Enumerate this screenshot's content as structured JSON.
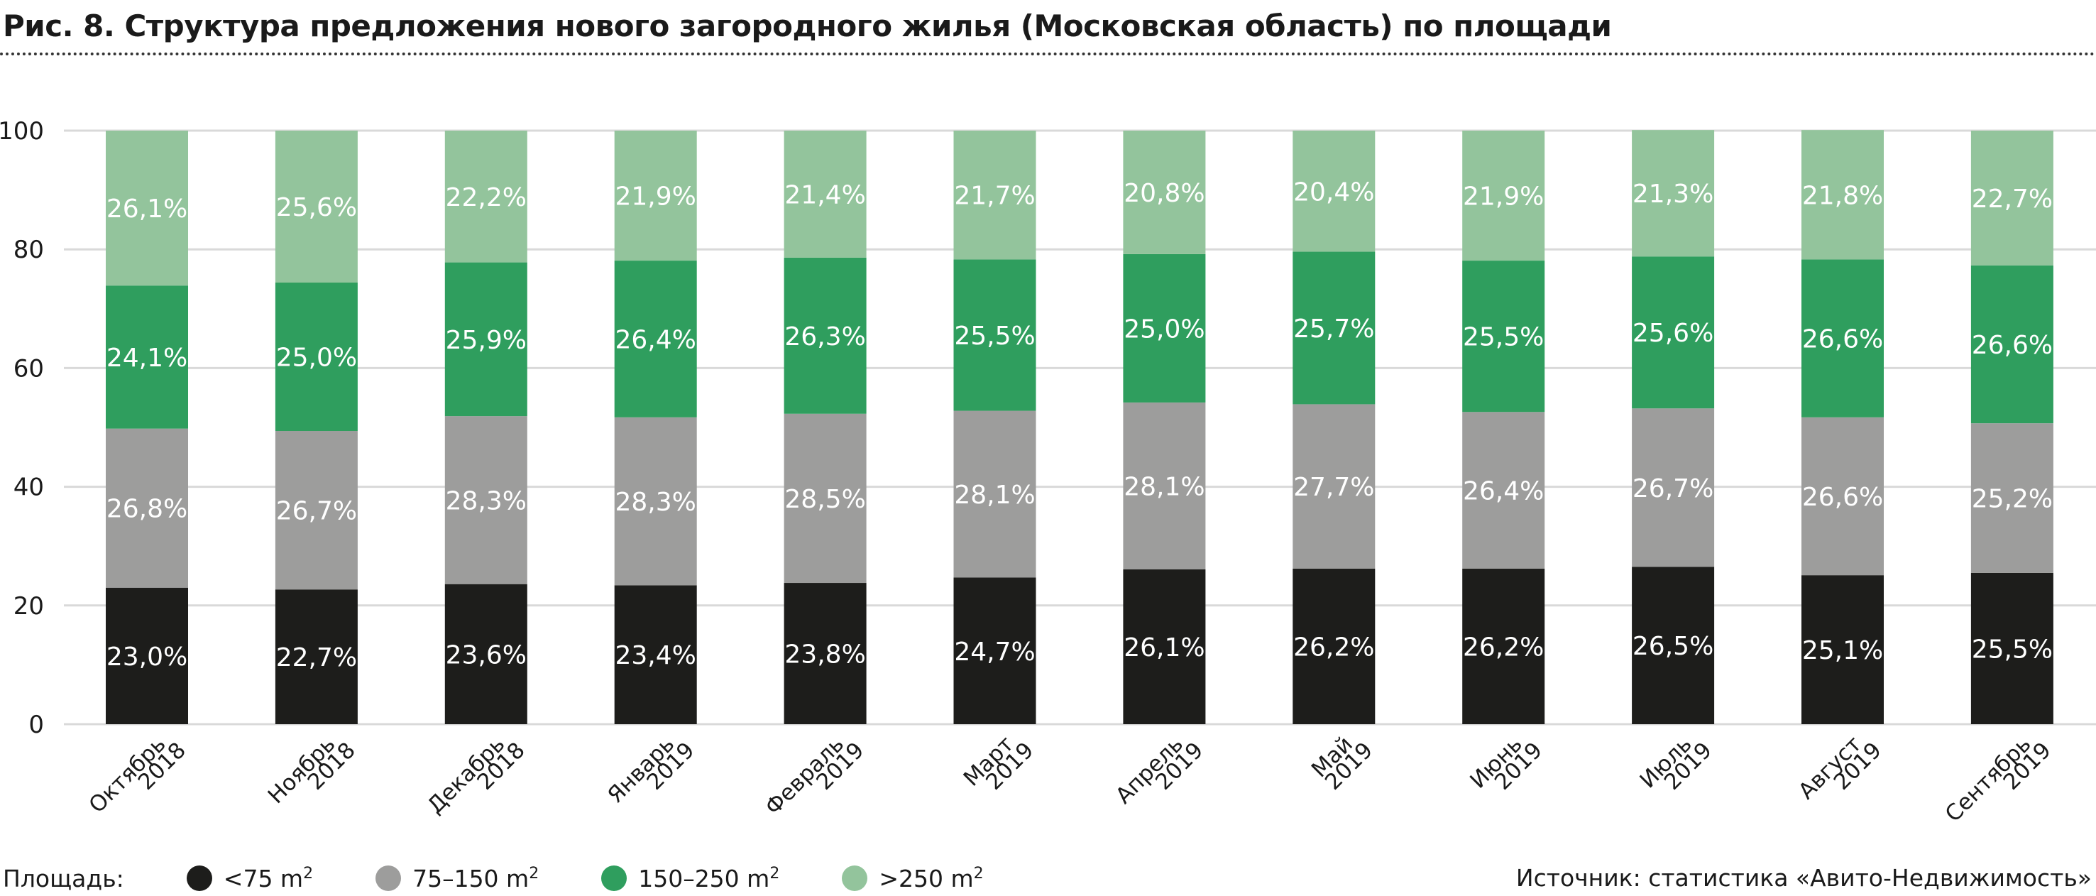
{
  "title": "Рис. 8. Структура предложения нового загородного жилья (Московская область) по площади",
  "legend": {
    "title": "Площадь:",
    "items": [
      {
        "label": "<75 m",
        "sup": "2",
        "color": "#1d1d1b"
      },
      {
        "label": "75–150 m",
        "sup": "2",
        "color": "#9d9d9c"
      },
      {
        "label": "150–250 m",
        "sup": "2",
        "color": "#2f9e5e"
      },
      {
        "label": ">250 m",
        "sup": "2",
        "color": "#93c49c"
      }
    ]
  },
  "source": "Источник: статистика «Авито-Недвижимость»",
  "chart_data": {
    "type": "bar",
    "stacked": true,
    "title": "Рис. 8. Структура предложения нового загородного жилья (Московская область) по площади",
    "categories": [
      [
        "Октябрь",
        "2018"
      ],
      [
        "Ноябрь",
        "2018"
      ],
      [
        "Декабрь",
        "2018"
      ],
      [
        "Январь",
        "2019"
      ],
      [
        "Февраль",
        "2019"
      ],
      [
        "Март",
        "2019"
      ],
      [
        "Апрель",
        "2019"
      ],
      [
        "Май",
        "2019"
      ],
      [
        "Июнь",
        "2019"
      ],
      [
        "Июль",
        "2019"
      ],
      [
        "Август",
        "2019"
      ],
      [
        "Сентябрь",
        "2019"
      ]
    ],
    "series": [
      {
        "name": "<75 m2",
        "color": "#1d1d1b",
        "values": [
          23.0,
          22.7,
          23.6,
          23.4,
          23.8,
          24.7,
          26.1,
          26.2,
          26.2,
          26.5,
          25.1,
          25.5
        ],
        "labels": [
          "23,0%",
          "22,7%",
          "23,6%",
          "23,4%",
          "23,8%",
          "24,7%",
          "26,1%",
          "26,2%",
          "26,2%",
          "26,5%",
          "25,1%",
          "25,5%"
        ]
      },
      {
        "name": "75–150 m2",
        "color": "#9d9d9c",
        "values": [
          26.8,
          26.7,
          28.3,
          28.3,
          28.5,
          28.1,
          28.1,
          27.7,
          26.4,
          26.7,
          26.6,
          25.2
        ],
        "labels": [
          "26,8%",
          "26,7%",
          "28,3%",
          "28,3%",
          "28,5%",
          "28,1%",
          "28,1%",
          "27,7%",
          "26,4%",
          "26,7%",
          "26,6%",
          "25,2%"
        ]
      },
      {
        "name": "150–250 m2",
        "color": "#2f9e5e",
        "values": [
          24.1,
          25.0,
          25.9,
          26.4,
          26.3,
          25.5,
          25.0,
          25.7,
          25.5,
          25.6,
          26.6,
          26.6
        ],
        "labels": [
          "24,1%",
          "25,0%",
          "25,9%",
          "26,4%",
          "26,3%",
          "25,5%",
          "25,0%",
          "25,7%",
          "25,5%",
          "25,6%",
          "26,6%",
          "26,6%"
        ]
      },
      {
        "name": ">250 m2",
        "color": "#93c49c",
        "values": [
          26.1,
          25.6,
          22.2,
          21.9,
          21.4,
          21.7,
          20.8,
          20.4,
          21.9,
          21.3,
          21.8,
          22.7
        ],
        "labels": [
          "26,1%",
          "25,6%",
          "22,2%",
          "21,9%",
          "21,4%",
          "21,7%",
          "20,8%",
          "20,4%",
          "21,9%",
          "21,3%",
          "21,8%",
          "22,7%"
        ]
      }
    ],
    "ylim": [
      0,
      100
    ],
    "yticks": [
      0,
      20,
      40,
      60,
      80,
      100
    ],
    "grid": true,
    "legend_position": "bottom"
  }
}
